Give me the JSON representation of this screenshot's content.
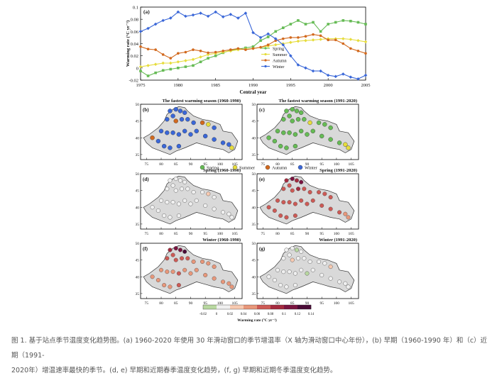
{
  "colors": {
    "spring": "#66bb55",
    "summer": "#e6dc3c",
    "autumn": "#d2691e",
    "winter": "#3a67d8",
    "land": "#d9d9d9"
  },
  "caption": {
    "line1": "图 1. 基于站点季节温度变化趋势图。(a) 1960-2020 年使用 30 年滑动窗口的季节增温率（X 轴为滑动窗口中心年份），(b) 早期（1960-1990 年）和（c）近期（1991-",
    "line2": "2020年）增温速率最快的季节。(d, e) 早期和近期春季温度变化趋势，(f, g) 早期和近期冬季温度变化趋势。"
  },
  "chart_data": [
    {
      "panel": "(a)",
      "type": "line",
      "xlabel": "Central year",
      "ylabel": "Warming rate (°C yr⁻¹)",
      "xlim": [
        1975,
        2005
      ],
      "ylim": [
        -0.02,
        0.1
      ],
      "xticks": [
        1975,
        1980,
        1985,
        1990,
        1995,
        2000,
        2005
      ],
      "yticks": [
        -0.02,
        0,
        0.02,
        0.04,
        0.06,
        0.08,
        0.1
      ],
      "ytick_labels": [
        "-0.02",
        "0",
        "0.02",
        "0.04",
        "0.06",
        "0.08",
        "0.1"
      ],
      "x": [
        1975,
        1976,
        1977,
        1978,
        1979,
        1980,
        1981,
        1982,
        1983,
        1984,
        1985,
        1986,
        1987,
        1988,
        1989,
        1990,
        1991,
        1992,
        1993,
        1994,
        1995,
        1996,
        1997,
        1998,
        1999,
        2000,
        2001,
        2002,
        2003,
        2004,
        2005
      ],
      "series": [
        {
          "name": "Spring",
          "color_key": "spring",
          "marker": "square",
          "values": [
            -0.005,
            -0.013,
            -0.008,
            -0.004,
            -0.002,
            0.0,
            0.002,
            0.004,
            0.01,
            0.016,
            0.02,
            0.025,
            0.029,
            0.031,
            0.033,
            0.035,
            0.045,
            0.051,
            0.06,
            0.066,
            0.072,
            0.078,
            0.072,
            0.075,
            0.06,
            0.072,
            0.075,
            0.078,
            0.077,
            0.075,
            0.072
          ]
        },
        {
          "name": "Summer",
          "color_key": "summer",
          "marker": "diamond",
          "values": [
            0.002,
            0.004,
            0.006,
            0.008,
            0.008,
            0.01,
            0.012,
            0.014,
            0.018,
            0.022,
            0.024,
            0.026,
            0.028,
            0.03,
            0.031,
            0.032,
            0.034,
            0.036,
            0.038,
            0.04,
            0.042,
            0.044,
            0.045,
            0.046,
            0.047,
            0.048,
            0.048,
            0.048,
            0.047,
            0.045,
            0.043
          ]
        },
        {
          "name": "Autumn",
          "color_key": "autumn",
          "marker": "circle",
          "values": [
            0.035,
            0.031,
            0.03,
            0.022,
            0.016,
            0.024,
            0.026,
            0.03,
            0.028,
            0.025,
            0.026,
            0.028,
            0.03,
            0.032,
            0.03,
            0.032,
            0.034,
            0.038,
            0.045,
            0.048,
            0.05,
            0.05,
            0.052,
            0.055,
            0.053,
            0.046,
            0.046,
            0.04,
            0.032,
            0.028,
            0.024
          ]
        },
        {
          "name": "Winter",
          "color_key": "winter",
          "marker": "diamond",
          "values": [
            0.06,
            0.065,
            0.072,
            0.078,
            0.082,
            0.092,
            0.085,
            0.087,
            0.09,
            0.085,
            0.092,
            0.084,
            0.088,
            0.082,
            0.09,
            0.058,
            0.05,
            0.056,
            0.048,
            0.038,
            0.02,
            0.005,
            0.0,
            -0.005,
            -0.005,
            -0.012,
            -0.014,
            -0.01,
            -0.015,
            -0.018,
            -0.012
          ]
        }
      ]
    },
    {
      "panel": "(b)",
      "type": "map",
      "title": "The fastest warming season (1960-1990)",
      "xticks": [
        "75",
        "80",
        "85",
        "90",
        "95",
        "100",
        "105"
      ],
      "yticks": [
        "50",
        "45",
        "40",
        "35"
      ],
      "stations": [
        [
          83,
          48,
          "winter"
        ],
        [
          85,
          48.5,
          "winter"
        ],
        [
          86.5,
          48,
          "winter"
        ],
        [
          88,
          47.5,
          "winter"
        ],
        [
          84,
          46.5,
          "winter"
        ],
        [
          82,
          45.5,
          "winter"
        ],
        [
          85,
          45,
          "autumn"
        ],
        [
          87,
          45.5,
          "winter"
        ],
        [
          89,
          45.5,
          "winter"
        ],
        [
          91,
          44.5,
          "winter"
        ],
        [
          94,
          44.5,
          "autumn"
        ],
        [
          96,
          44,
          "summer"
        ],
        [
          98,
          43,
          "winter"
        ],
        [
          80,
          42,
          "winter"
        ],
        [
          82,
          41.5,
          "winter"
        ],
        [
          84,
          41.5,
          "winter"
        ],
        [
          86,
          41,
          "winter"
        ],
        [
          88,
          42,
          "winter"
        ],
        [
          90,
          41,
          "winter"
        ],
        [
          92,
          42,
          "winter"
        ],
        [
          95,
          40.5,
          "winter"
        ],
        [
          98,
          39.5,
          "winter"
        ],
        [
          101,
          38.5,
          "winter"
        ],
        [
          103,
          38,
          "winter"
        ],
        [
          104,
          37,
          "summer"
        ],
        [
          77,
          40,
          "autumn"
        ],
        [
          79,
          39,
          "winter"
        ],
        [
          81,
          37.5,
          "winter"
        ],
        [
          83,
          37,
          "winter"
        ],
        [
          86,
          37.5,
          "winter"
        ]
      ]
    },
    {
      "panel": "(c)",
      "type": "map",
      "title": "The fastest warming season (1991-2020)",
      "xticks": [
        "75",
        "80",
        "85",
        "90",
        "95",
        "100",
        "105"
      ],
      "yticks": [
        "50",
        "45",
        "40",
        "35"
      ],
      "stations": [
        [
          83,
          48,
          "spring"
        ],
        [
          85,
          48.5,
          "spring"
        ],
        [
          86.5,
          48,
          "spring"
        ],
        [
          88,
          47.5,
          "spring"
        ],
        [
          84,
          46.5,
          "spring"
        ],
        [
          82,
          45.5,
          "spring"
        ],
        [
          85,
          45,
          "spring"
        ],
        [
          87,
          45.5,
          "spring"
        ],
        [
          89,
          45.5,
          "spring"
        ],
        [
          91,
          44.5,
          "summer"
        ],
        [
          94,
          44.5,
          "spring"
        ],
        [
          96,
          44,
          "spring"
        ],
        [
          98,
          43,
          "spring"
        ],
        [
          80,
          42,
          "spring"
        ],
        [
          82,
          41.5,
          "spring"
        ],
        [
          84,
          41.5,
          "spring"
        ],
        [
          86,
          41,
          "spring"
        ],
        [
          88,
          42,
          "spring"
        ],
        [
          90,
          41,
          "spring"
        ],
        [
          92,
          42,
          "spring"
        ],
        [
          95,
          40.5,
          "spring"
        ],
        [
          98,
          39.5,
          "spring"
        ],
        [
          101,
          38.5,
          "spring"
        ],
        [
          103,
          38,
          "summer"
        ],
        [
          104,
          37,
          "summer"
        ],
        [
          77,
          40,
          "spring"
        ],
        [
          79,
          39,
          "spring"
        ],
        [
          81,
          37.5,
          "spring"
        ],
        [
          83,
          37,
          "spring"
        ],
        [
          86,
          37.5,
          "spring"
        ]
      ]
    },
    {
      "panel": "(d)",
      "type": "map",
      "title": "Spring (1960-1990)",
      "xticks": [
        "75",
        "80",
        "85",
        "90",
        "95",
        "100",
        "105"
      ],
      "yticks": [
        "50",
        "45",
        "40",
        "35"
      ],
      "values": [
        0.0,
        0.01,
        0.0,
        0.01,
        0.0,
        0.0,
        0.01,
        0.0,
        0.0,
        0.01,
        0.0,
        0.02,
        0.0,
        0.0,
        0.01,
        0.0,
        0.01,
        0.0,
        0.0,
        0.0,
        0.01,
        0.0,
        0.0,
        0.01,
        0.0,
        0.0,
        0.0,
        0.01,
        0.0,
        0.01
      ]
    },
    {
      "panel": "(e)",
      "type": "map",
      "title": "Spring (1991-2020)",
      "xticks": [
        "75",
        "80",
        "85",
        "90",
        "95",
        "100",
        "105"
      ],
      "yticks": [
        "50",
        "45",
        "40",
        "35"
      ],
      "values": [
        0.1,
        0.12,
        0.1,
        0.12,
        0.08,
        0.08,
        0.08,
        0.1,
        0.08,
        0.06,
        0.08,
        0.06,
        0.06,
        0.06,
        0.06,
        0.08,
        0.08,
        0.06,
        0.08,
        0.06,
        0.06,
        0.06,
        0.06,
        0.04,
        0.04,
        0.06,
        0.06,
        0.06,
        0.06,
        0.08
      ]
    },
    {
      "panel": "(f)",
      "type": "map",
      "title": "Winter (1960-1990)",
      "xticks": [
        "75",
        "80",
        "85",
        "90",
        "95",
        "100",
        "105"
      ],
      "yticks": [
        "50",
        "45",
        "40",
        "35"
      ],
      "values": [
        0.1,
        0.12,
        0.12,
        0.14,
        0.08,
        0.06,
        0.06,
        0.08,
        0.06,
        0.04,
        0.04,
        0.04,
        0.04,
        0.04,
        0.04,
        0.04,
        0.06,
        0.04,
        0.04,
        0.04,
        0.04,
        0.04,
        0.04,
        0.04,
        0.04,
        0.04,
        0.04,
        0.04,
        0.04,
        0.06
      ]
    },
    {
      "panel": "(g)",
      "type": "map",
      "title": "Winter (1991-2020)",
      "xticks": [
        "75",
        "80",
        "85",
        "90",
        "95",
        "100",
        "105"
      ],
      "yticks": [
        "50",
        "45",
        "40",
        "35"
      ],
      "values": [
        0.0,
        0.0,
        -0.02,
        0.0,
        0.0,
        0.0,
        0.02,
        0.0,
        0.0,
        0.0,
        0.0,
        0.0,
        0.02,
        0.0,
        0.0,
        0.0,
        0.0,
        0.0,
        -0.02,
        0.0,
        0.0,
        0.0,
        0.0,
        0.0,
        0.0,
        0.0,
        0.0,
        0.0,
        0.0,
        0.0
      ]
    }
  ],
  "season_legend": [
    "Spring",
    "Summer",
    "Autumn",
    "Winter"
  ],
  "colorbar": {
    "label": "Warming rate (°C yr⁻¹)",
    "ticks": [
      "-0.02",
      "0",
      "0.02",
      "0.04",
      "0.06",
      "0.08",
      "0.1",
      "0.12",
      "0.14"
    ],
    "colors": [
      "#b8d8a0",
      "#f0f0f0",
      "#f7c9b0",
      "#e8977a",
      "#cd5a55",
      "#a52a3e",
      "#7a1440",
      "#4a0a36"
    ]
  }
}
